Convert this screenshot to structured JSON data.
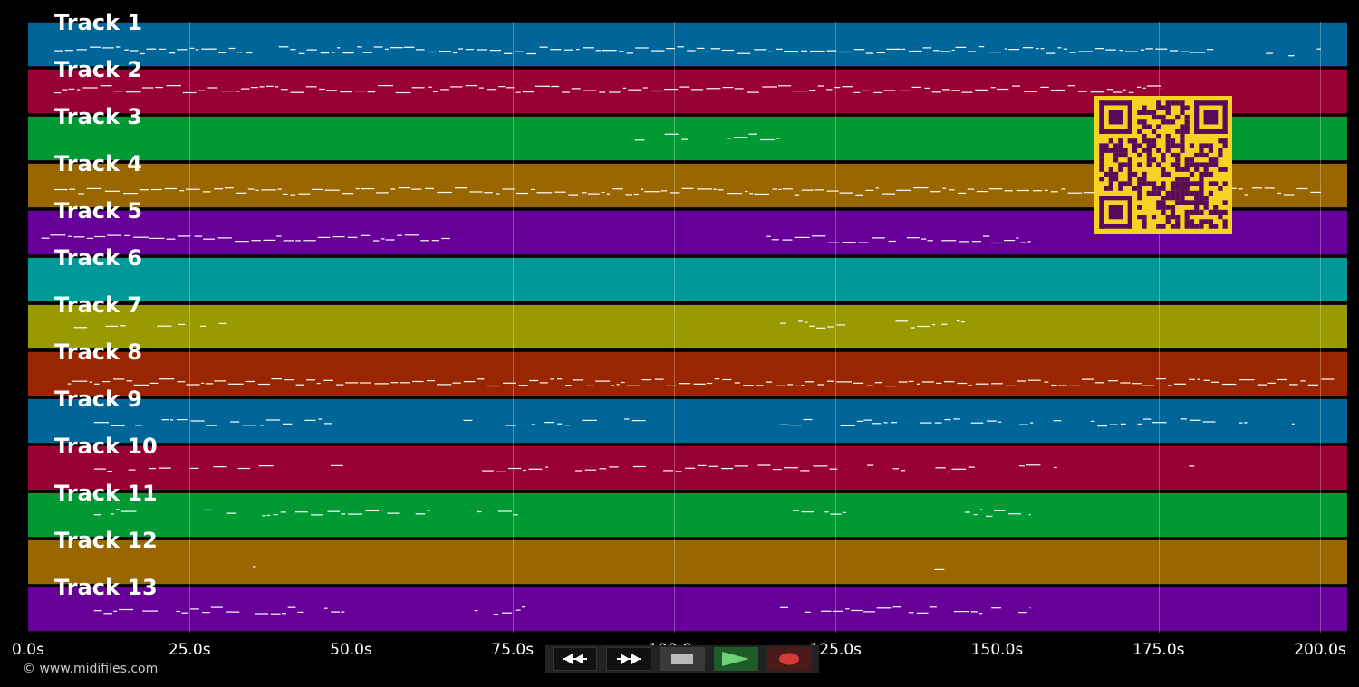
{
  "tracks": [
    {
      "label": "Track 1",
      "color": "#006699"
    },
    {
      "label": "Track 2",
      "color": "#990033"
    },
    {
      "label": "Track 3",
      "color": "#009933"
    },
    {
      "label": "Track 4",
      "color": "#996600"
    },
    {
      "label": "Track 5",
      "color": "#660099"
    },
    {
      "label": "Track 6",
      "color": "#009999"
    },
    {
      "label": "Track 7",
      "color": "#999900"
    },
    {
      "label": "Track 8",
      "color": "#992600"
    },
    {
      "label": "Track 9",
      "color": "#006699"
    },
    {
      "label": "Track 10",
      "color": "#990033"
    },
    {
      "label": "Track 11",
      "color": "#009933"
    },
    {
      "label": "Track 12",
      "color": "#996600"
    },
    {
      "label": "Track 13",
      "color": "#660099"
    }
  ],
  "timeline": {
    "max_seconds": 200,
    "ticks": [
      "0.0s",
      "25.0s",
      "50.0s",
      "75.0s",
      "100.0s",
      "125.0s",
      "150.0s",
      "175.0s",
      "200.0s"
    ]
  },
  "copyright": "© www.midifiles.com",
  "transport": {
    "rewind_icon": "rewind-icon",
    "fast_forward_icon": "fast-forward-icon",
    "stop_icon": "stop-icon",
    "play_icon": "play-icon",
    "record_icon": "record-icon",
    "play_color": "#2e8b3a",
    "record_color": "#d83a3a"
  },
  "qr_code": {
    "fg": "#5a0a5a",
    "bg": "#f5d322"
  }
}
